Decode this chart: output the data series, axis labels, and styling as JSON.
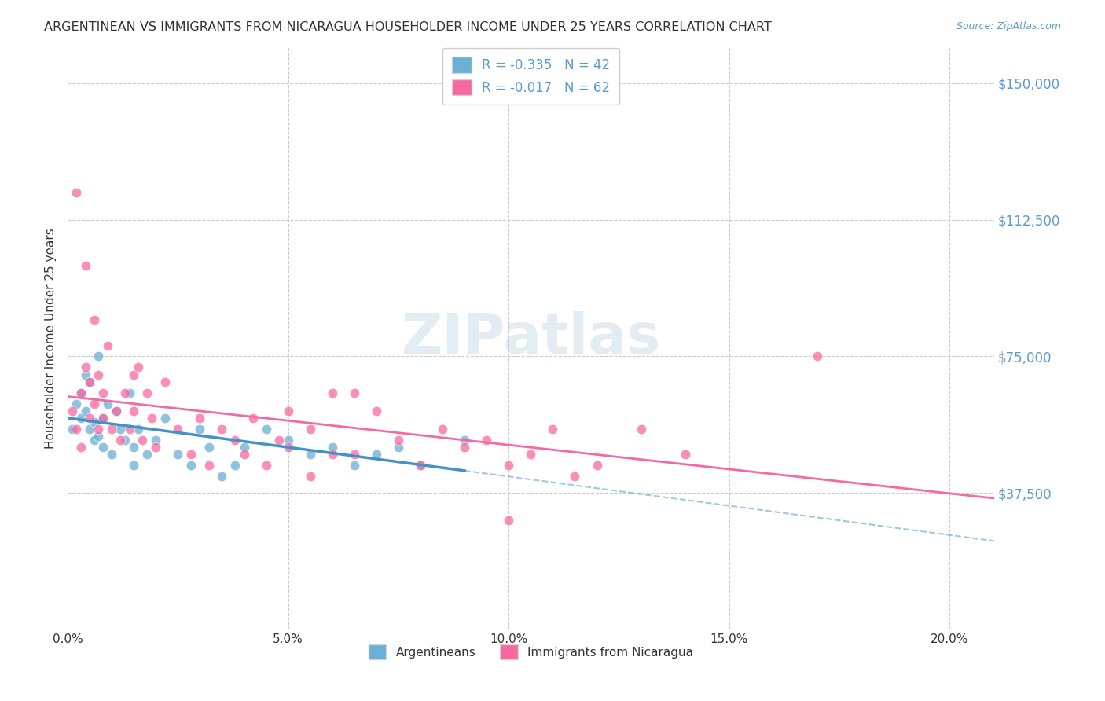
{
  "title": "ARGENTINEAN VS IMMIGRANTS FROM NICARAGUA HOUSEHOLDER INCOME UNDER 25 YEARS CORRELATION CHART",
  "source": "Source: ZipAtlas.com",
  "xlabel_ticks": [
    "0.0%",
    "5.0%",
    "10.0%",
    "15.0%",
    "20.0%"
  ],
  "xlabel_tick_vals": [
    0.0,
    0.05,
    0.1,
    0.15,
    0.2
  ],
  "ylabel": "Householder Income Under 25 years",
  "ytick_labels": [
    "$37,500",
    "$75,000",
    "$112,500",
    "$150,000"
  ],
  "ytick_vals": [
    37500,
    75000,
    112500,
    150000
  ],
  "ylim": [
    0,
    160000
  ],
  "xlim": [
    0.0,
    0.21
  ],
  "watermark": "ZIPatlas",
  "legend_entries": [
    {
      "label": "R = -0.335   N = 42",
      "color": "#a8c4e0"
    },
    {
      "label": "R = -0.017   N = 62",
      "color": "#f4a0b0"
    }
  ],
  "legend_labels_bottom": [
    "Argentineans",
    "Immigrants from Nicaragua"
  ],
  "argentina_color": "#6baed6",
  "nicaragua_color": "#f768a1",
  "argentina_trendline_color": "#4292c6",
  "nicaragua_trendline_color": "#f768a1",
  "background_color": "#ffffff",
  "grid_color": "#cccccc",
  "argentina_x": [
    0.001,
    0.002,
    0.003,
    0.003,
    0.004,
    0.004,
    0.005,
    0.005,
    0.006,
    0.006,
    0.007,
    0.007,
    0.008,
    0.008,
    0.009,
    0.01,
    0.011,
    0.012,
    0.013,
    0.014,
    0.015,
    0.015,
    0.016,
    0.018,
    0.02,
    0.022,
    0.025,
    0.028,
    0.03,
    0.032,
    0.035,
    0.038,
    0.04,
    0.045,
    0.05,
    0.055,
    0.06,
    0.065,
    0.07,
    0.075,
    0.08,
    0.09
  ],
  "argentina_y": [
    55000,
    62000,
    58000,
    65000,
    70000,
    60000,
    55000,
    68000,
    52000,
    57000,
    75000,
    53000,
    58000,
    50000,
    62000,
    48000,
    60000,
    55000,
    52000,
    65000,
    45000,
    50000,
    55000,
    48000,
    52000,
    58000,
    48000,
    45000,
    55000,
    50000,
    42000,
    45000,
    50000,
    55000,
    52000,
    48000,
    50000,
    45000,
    48000,
    50000,
    45000,
    52000
  ],
  "nicaragua_x": [
    0.001,
    0.002,
    0.002,
    0.003,
    0.003,
    0.004,
    0.004,
    0.005,
    0.005,
    0.006,
    0.006,
    0.007,
    0.007,
    0.008,
    0.008,
    0.009,
    0.01,
    0.011,
    0.012,
    0.013,
    0.014,
    0.015,
    0.015,
    0.016,
    0.017,
    0.018,
    0.019,
    0.02,
    0.022,
    0.025,
    0.028,
    0.03,
    0.032,
    0.035,
    0.038,
    0.04,
    0.042,
    0.045,
    0.048,
    0.05,
    0.055,
    0.06,
    0.065,
    0.07,
    0.075,
    0.08,
    0.085,
    0.09,
    0.095,
    0.1,
    0.105,
    0.11,
    0.115,
    0.12,
    0.13,
    0.14,
    0.1,
    0.05,
    0.17,
    0.06,
    0.055,
    0.065
  ],
  "nicaragua_y": [
    60000,
    120000,
    55000,
    65000,
    50000,
    72000,
    100000,
    58000,
    68000,
    62000,
    85000,
    55000,
    70000,
    65000,
    58000,
    78000,
    55000,
    60000,
    52000,
    65000,
    55000,
    70000,
    60000,
    72000,
    52000,
    65000,
    58000,
    50000,
    68000,
    55000,
    48000,
    58000,
    45000,
    55000,
    52000,
    48000,
    58000,
    45000,
    52000,
    60000,
    55000,
    48000,
    65000,
    60000,
    52000,
    45000,
    55000,
    50000,
    52000,
    45000,
    48000,
    55000,
    42000,
    45000,
    55000,
    48000,
    30000,
    50000,
    75000,
    65000,
    42000,
    48000
  ]
}
